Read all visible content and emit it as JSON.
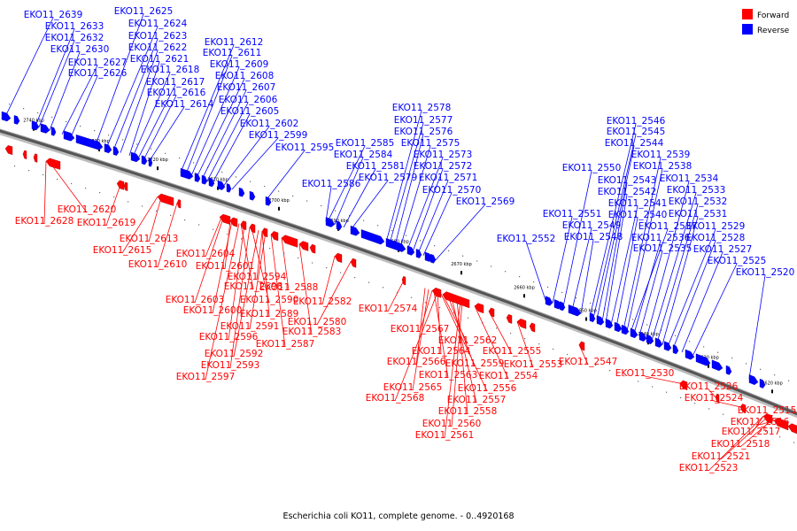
{
  "caption": "Escherichia coli KO11, complete genome. - 0..4920168",
  "legend": [
    {
      "label": "Forward",
      "color": "#ff0000"
    },
    {
      "label": "Reverse",
      "color": "#0000ff"
    }
  ],
  "ticks": [
    "2740 kbp",
    "2730 kbp",
    "2720 kbp",
    "2710 kbp",
    "2700 kbp",
    "2690 kbp",
    "2680 kbp",
    "2670 kbp",
    "2660 kbp",
    "2650 kbp",
    "2640 kbp",
    "2630 kbp",
    "2620 kbp"
  ],
  "reverse_labels": [
    "EKO11_2639",
    "EKO11_2633",
    "EKO11_2632",
    "EKO11_2630",
    "EKO11_2627",
    "EKO11_2626",
    "EKO11_2625",
    "EKO11_2624",
    "EKO11_2623",
    "EKO11_2622",
    "EKO11_2621",
    "EKO11_2618",
    "EKO11_2617",
    "EKO11_2616",
    "EKO11_2614",
    "EKO11_2612",
    "EKO11_2611",
    "EKO11_2609",
    "EKO11_2608",
    "EKO11_2607",
    "EKO11_2606",
    "EKO11_2605",
    "EKO11_2602",
    "EKO11_2599",
    "EKO11_2595",
    "EKO11_2586",
    "EKO11_2585",
    "EKO11_2584",
    "EKO11_2581",
    "EKO11_2579",
    "EKO11_2578",
    "EKO11_2577",
    "EKO11_2576",
    "EKO11_2575",
    "EKO11_2573",
    "EKO11_2572",
    "EKO11_2571",
    "EKO11_2570",
    "EKO11_2569",
    "EKO11_2552",
    "EKO11_2551",
    "EKO11_2550",
    "EKO11_2549",
    "EKO11_2548",
    "EKO11_2546",
    "EKO11_2545",
    "EKO11_2544",
    "EKO11_2543",
    "EKO11_2542",
    "EKO11_2541",
    "EKO11_2540",
    "EKO11_2539",
    "EKO11_2538",
    "EKO11_2537",
    "EKO11_2536",
    "EKO11_2535",
    "EKO11_2534",
    "EKO11_2533",
    "EKO11_2532",
    "EKO11_2531",
    "EKO11_2529",
    "EKO11_2528",
    "EKO11_2527",
    "EKO11_2525",
    "EKO11_2520"
  ],
  "forward_labels": [
    "EKO11_2620",
    "EKO11_2628",
    "EKO11_2619",
    "EKO11_2613",
    "EKO11_2615",
    "EKO11_2610",
    "EKO11_2604",
    "EKO11_2601",
    "EKO11_2598",
    "EKO11_2594",
    "EKO11_2588",
    "EKO11_2603",
    "EKO11_2590",
    "EKO11_2582",
    "EKO11_2600",
    "EKO11_2589",
    "EKO11_2580",
    "EKO11_2591",
    "EKO11_2583",
    "EKO11_2596",
    "EKO11_2587",
    "EKO11_2592",
    "EKO11_2593",
    "EKO11_2597",
    "EKO11_2574",
    "EKO11_2567",
    "EKO11_2562",
    "EKO11_2564",
    "EKO11_2555",
    "EKO11_2566",
    "EKO11_2559",
    "EKO11_2553",
    "EKO11_2547",
    "EKO11_2563",
    "EKO11_2554",
    "EKO11_2565",
    "EKO11_2556",
    "EKO11_2568",
    "EKO11_2557",
    "EKO11_2558",
    "EKO11_2560",
    "EKO11_2561",
    "EKO11_2530",
    "EKO11_2526",
    "EKO11_2524",
    "EKO11_2515",
    "EKO11_2516",
    "EKO11_2517",
    "EKO11_2518",
    "EKO11_2521",
    "EKO11_2523"
  ]
}
